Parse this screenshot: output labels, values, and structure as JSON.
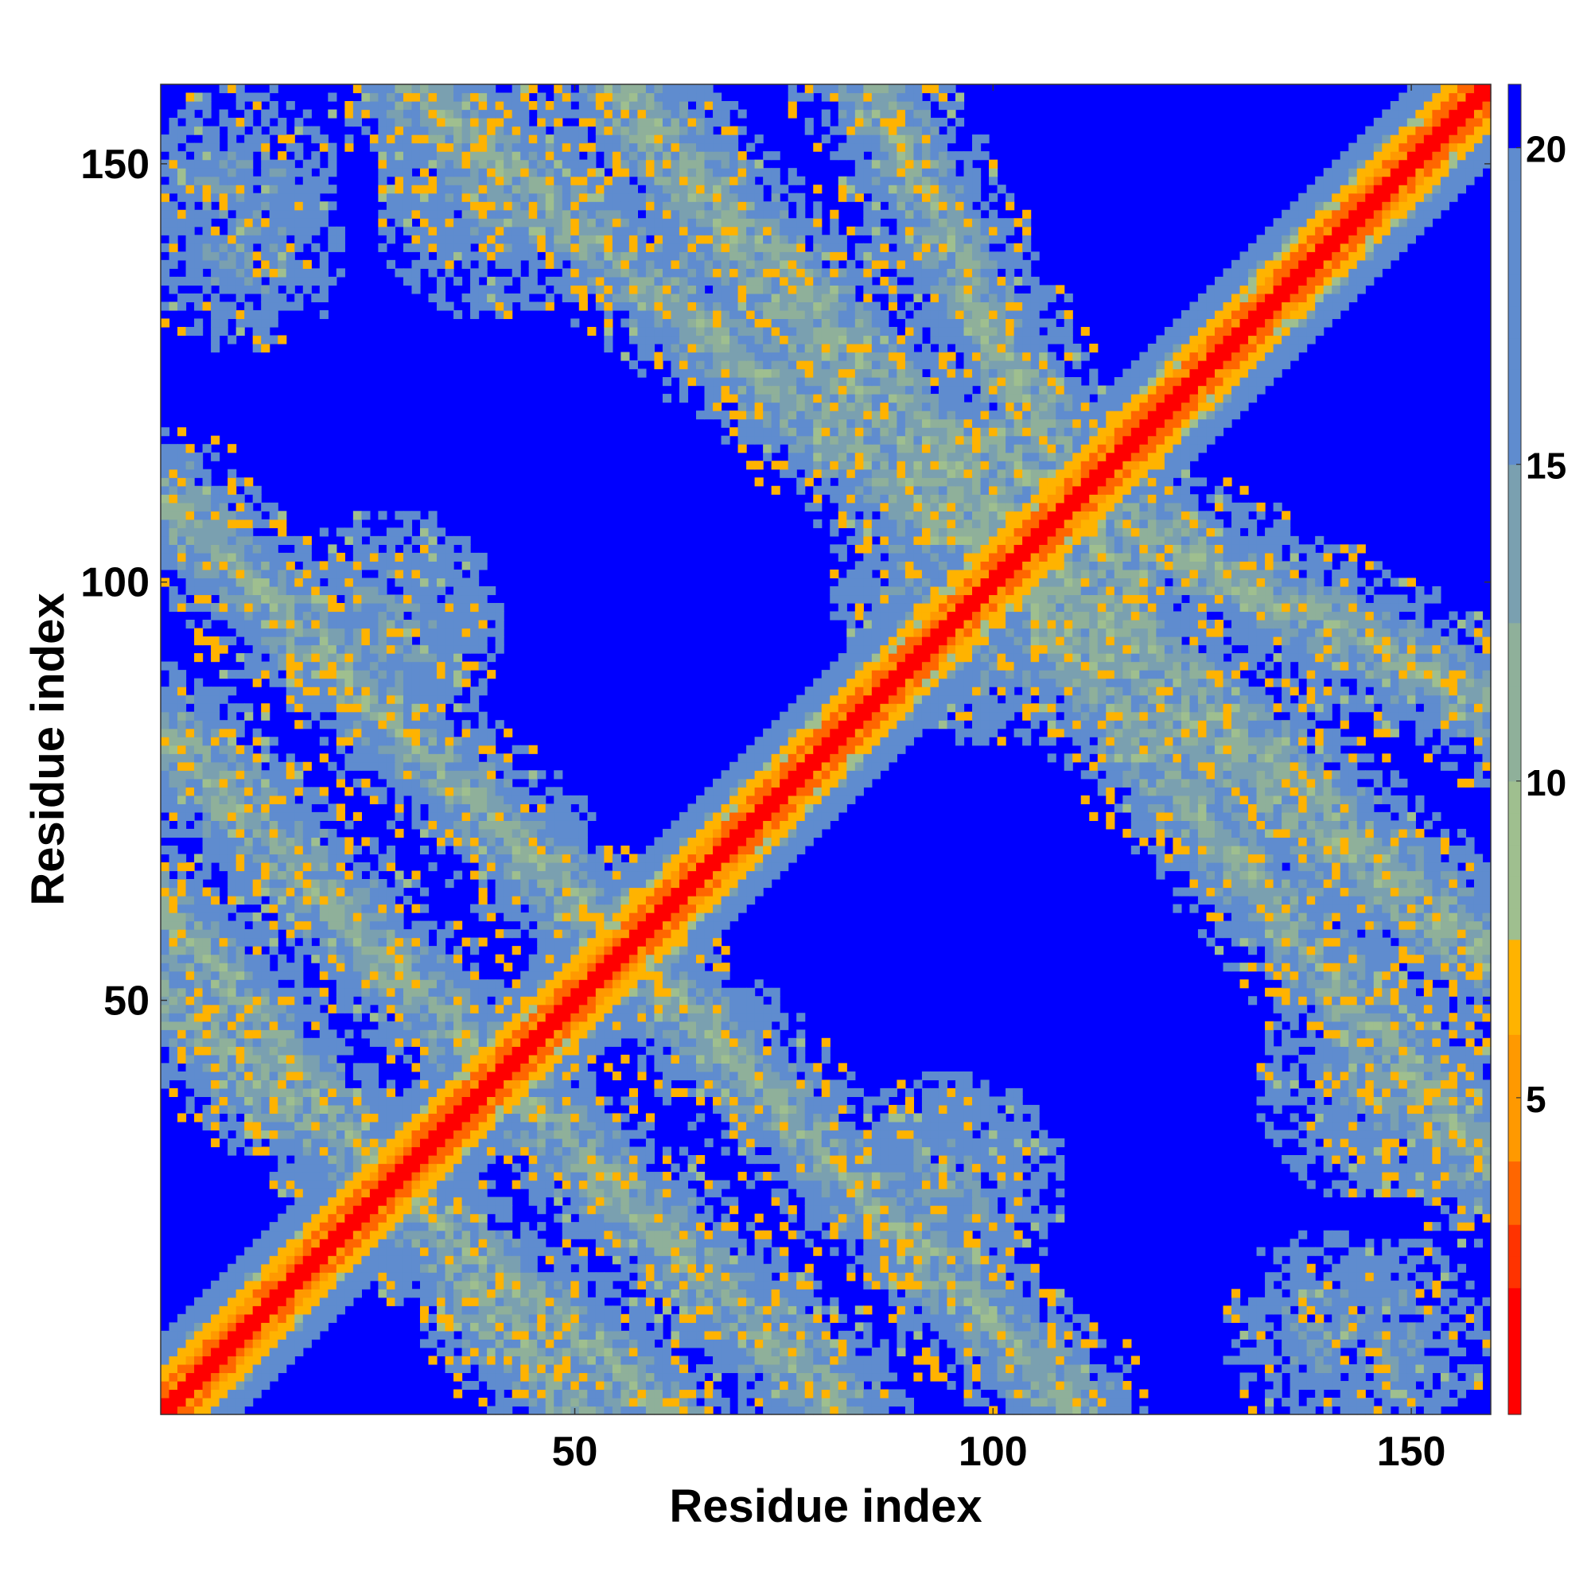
{
  "chart_data": {
    "type": "heatmap",
    "title": "",
    "xlabel": "Residue index",
    "ylabel": "Residue index",
    "xlim": [
      1,
      159
    ],
    "ylim": [
      1,
      159
    ],
    "x_ticks": [
      50,
      100,
      150
    ],
    "y_ticks": [
      50,
      100,
      150
    ],
    "colorbar": {
      "ticks": [
        5,
        10,
        15,
        20
      ],
      "range": [
        0,
        21
      ],
      "palette": [
        "#ff0000",
        "#ff3300",
        "#ff6600",
        "#ff9900",
        "#ffb300",
        "#9fbf8f",
        "#8fb09a",
        "#7aa0b0",
        "#5f8ccf",
        "#0000ff"
      ],
      "bounds": [
        2,
        3,
        4,
        6,
        7.7,
        10,
        12.5,
        15,
        20
      ]
    },
    "structure": {
      "n_residues": 159,
      "diagonal_band": {
        "core_halfwidth": 1,
        "band_halfwidth": 7
      },
      "secondary_bands": [
        {
          "from": [
            1,
            82
          ],
          "to": [
            62,
            20
          ]
        },
        {
          "from": [
            30,
            159
          ],
          "to": [
            158,
            55
          ]
        },
        {
          "from": [
            1,
            60
          ],
          "to": [
            50,
            1
          ]
        },
        {
          "from": [
            55,
            57
          ],
          "to": [
            110,
            1
          ]
        },
        {
          "from": [
            85,
            160
          ],
          "to": [
            120,
            90
          ]
        },
        {
          "from": [
            95,
            112
          ],
          "to": [
            160,
            55
          ]
        }
      ],
      "clusters": [
        {
          "center": [
            10,
            148
          ],
          "radius": 12
        },
        {
          "center": [
            28,
            95
          ],
          "radius": 14
        },
        {
          "center": [
            38,
            150
          ],
          "radius": 12
        },
        {
          "center": [
            95,
            28
          ],
          "radius": 12
        },
        {
          "center": [
            145,
            40
          ],
          "radius": 14
        },
        {
          "center": [
            140,
            10
          ],
          "radius": 13
        },
        {
          "center": [
            100,
            90
          ],
          "radius": 10
        }
      ]
    }
  }
}
